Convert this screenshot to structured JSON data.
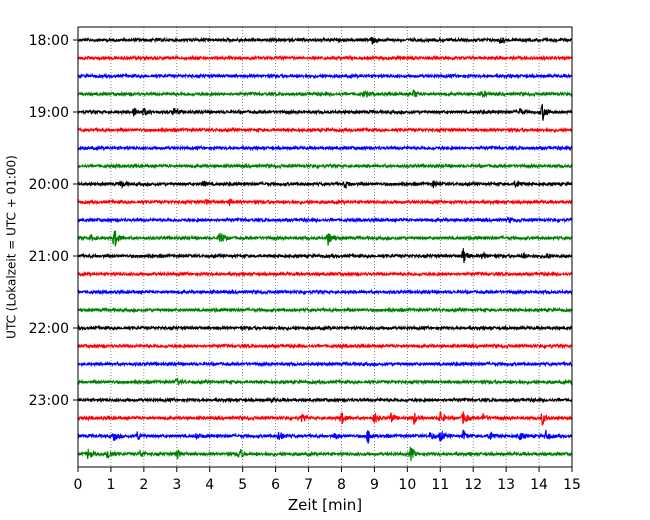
{
  "chart_data": {
    "type": "line",
    "title": "",
    "xlabel": "Zeit  [min]",
    "ylabel": "UTC (Lokalzeit = UTC + 01:00)",
    "xlim": [
      0,
      15
    ],
    "x_ticks": [
      0,
      1,
      2,
      3,
      4,
      5,
      6,
      7,
      8,
      9,
      10,
      11,
      12,
      13,
      14,
      15
    ],
    "x_tick_labels": [
      "0",
      "1",
      "2",
      "3",
      "4",
      "5",
      "6",
      "7",
      "8",
      "9",
      "10",
      "11",
      "12",
      "13",
      "14",
      "15"
    ],
    "y_tick_labels": [
      "18:00",
      "19:00",
      "20:00",
      "21:00",
      "22:00",
      "23:00"
    ],
    "y_tick_trace_index": [
      0,
      4,
      8,
      12,
      16,
      20
    ],
    "trace_interval_min": 15,
    "grid": "vertical dotted at each minute",
    "trace_colors": [
      "#000000",
      "#ff0000",
      "#0000ff",
      "#008000"
    ],
    "traces": [
      {
        "start": "18:00",
        "color": "#000000",
        "events": [
          [
            8.9,
            0.6
          ],
          [
            12.8,
            0.4
          ]
        ]
      },
      {
        "start": "18:15",
        "color": "#ff0000",
        "events": []
      },
      {
        "start": "18:30",
        "color": "#0000ff",
        "events": []
      },
      {
        "start": "18:45",
        "color": "#008000",
        "events": [
          [
            8.7,
            0.4
          ],
          [
            10.2,
            0.4
          ],
          [
            12.3,
            0.3
          ]
        ]
      },
      {
        "start": "19:00",
        "color": "#000000",
        "events": [
          [
            1.7,
            0.5
          ],
          [
            2.0,
            0.4
          ],
          [
            2.9,
            0.5
          ],
          [
            13.4,
            0.4
          ],
          [
            14.1,
            1.0
          ]
        ]
      },
      {
        "start": "19:15",
        "color": "#ff0000",
        "events": []
      },
      {
        "start": "19:30",
        "color": "#0000ff",
        "events": []
      },
      {
        "start": "19:45",
        "color": "#008000",
        "events": []
      },
      {
        "start": "20:00",
        "color": "#000000",
        "events": [
          [
            1.3,
            0.4
          ],
          [
            3.8,
            0.3
          ],
          [
            8.1,
            0.4
          ],
          [
            10.8,
            0.4
          ],
          [
            13.3,
            0.4
          ]
        ]
      },
      {
        "start": "20:15",
        "color": "#ff0000",
        "events": [
          [
            3.9,
            0.3
          ],
          [
            4.6,
            0.3
          ]
        ]
      },
      {
        "start": "20:30",
        "color": "#0000ff",
        "events": [
          [
            13.1,
            0.3
          ]
        ]
      },
      {
        "start": "20:45",
        "color": "#008000",
        "events": [
          [
            0.4,
            0.3
          ],
          [
            1.1,
            1.2
          ],
          [
            4.3,
            0.9
          ],
          [
            7.6,
            0.8
          ]
        ]
      },
      {
        "start": "21:00",
        "color": "#000000",
        "events": [
          [
            11.7,
            0.9
          ],
          [
            12.3,
            0.3
          ],
          [
            13.5,
            0.3
          ],
          [
            14.2,
            0.4
          ]
        ]
      },
      {
        "start": "21:15",
        "color": "#ff0000",
        "events": []
      },
      {
        "start": "21:30",
        "color": "#0000ff",
        "events": []
      },
      {
        "start": "21:45",
        "color": "#008000",
        "events": []
      },
      {
        "start": "22:00",
        "color": "#000000",
        "events": []
      },
      {
        "start": "22:15",
        "color": "#ff0000",
        "events": []
      },
      {
        "start": "22:30",
        "color": "#0000ff",
        "events": []
      },
      {
        "start": "22:45",
        "color": "#008000",
        "events": [
          [
            3.0,
            0.3
          ]
        ]
      },
      {
        "start": "23:00",
        "color": "#000000",
        "events": [
          [
            5.9,
            0.2
          ]
        ]
      },
      {
        "start": "23:15",
        "color": "#ff0000",
        "events": [
          [
            6.8,
            0.4
          ],
          [
            8.0,
            0.7
          ],
          [
            9.0,
            0.6
          ],
          [
            9.5,
            0.5
          ],
          [
            10.2,
            0.6
          ],
          [
            11.0,
            0.8
          ],
          [
            11.7,
            0.7
          ],
          [
            12.3,
            0.4
          ],
          [
            14.1,
            0.7
          ]
        ]
      },
      {
        "start": "23:30",
        "color": "#0000ff",
        "events": [
          [
            1.1,
            0.5
          ],
          [
            1.8,
            0.5
          ],
          [
            3.6,
            0.3
          ],
          [
            6.1,
            0.6
          ],
          [
            7.8,
            0.4
          ],
          [
            8.8,
            0.8
          ],
          [
            10.7,
            0.4
          ],
          [
            11.0,
            0.6
          ],
          [
            11.7,
            0.6
          ],
          [
            12.5,
            0.5
          ],
          [
            13.4,
            0.5
          ],
          [
            14.2,
            0.6
          ]
        ]
      },
      {
        "start": "23:45",
        "color": "#008000",
        "events": [
          [
            0.3,
            0.6
          ],
          [
            0.9,
            0.7
          ],
          [
            1.9,
            0.4
          ],
          [
            3.0,
            0.6
          ],
          [
            4.9,
            0.6
          ],
          [
            10.1,
            0.8
          ]
        ]
      }
    ]
  }
}
